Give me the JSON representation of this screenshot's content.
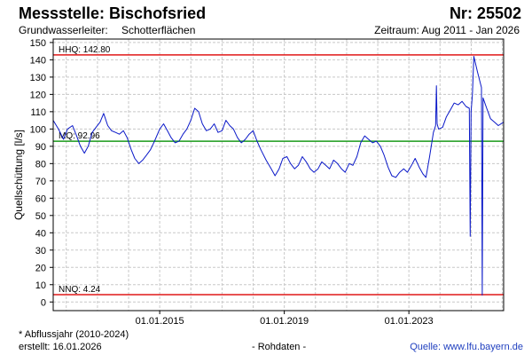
{
  "header": {
    "title": "Messstelle: Bischofsried",
    "number": "Nr: 25502",
    "aquifer_label": "Grundwasserleiter:",
    "aquifer_value": "Schotterflächen",
    "period": "Zeitraum: Aug 2011 - Jan 2026"
  },
  "footer": {
    "note": "* Abflussjahr (2010-2024)",
    "created": "erstellt:  16.01.2026",
    "rawdata": "- Rohdaten -",
    "source": "Quelle: www.lfu.bayern.de"
  },
  "colors": {
    "series": "#0a18c8",
    "hhq": "#e01818",
    "nnq": "#e01818",
    "mq": "#1a9a1a",
    "grid": "#c8c8c8"
  },
  "chart_data": {
    "type": "line",
    "ylabel": "Quellschüttung [l/s]",
    "ylim": [
      -5,
      152
    ],
    "yticks": [
      0,
      10,
      20,
      30,
      40,
      50,
      60,
      70,
      80,
      90,
      100,
      110,
      120,
      130,
      140,
      150
    ],
    "xlim": [
      "2011-08-01",
      "2026-01-16"
    ],
    "xticks": [
      {
        "date": "2015-01-01",
        "label": "01.01.2015"
      },
      {
        "date": "2019-01-01",
        "label": "01.01.2019"
      },
      {
        "date": "2023-01-01",
        "label": "01.01.2023"
      }
    ],
    "grid": true,
    "reference_lines": [
      {
        "name": "HHQ",
        "label": "HHQ: 142.80",
        "value": 142.8,
        "color": "#e01818"
      },
      {
        "name": "MQ",
        "label": "MQ: 92.96",
        "value": 92.96,
        "color": "#1a9a1a"
      },
      {
        "name": "NNQ",
        "label": "NNQ: 4.24",
        "value": 4.24,
        "color": "#e01818"
      }
    ],
    "series": [
      {
        "color": "#0a18c8",
        "points": [
          [
            "2011-08-01",
            105
          ],
          [
            "2011-10-01",
            100
          ],
          [
            "2011-12-01",
            94
          ],
          [
            "2012-01-15",
            100
          ],
          [
            "2012-03-15",
            102
          ],
          [
            "2012-05-01",
            96
          ],
          [
            "2012-06-15",
            90
          ],
          [
            "2012-08-01",
            86
          ],
          [
            "2012-09-15",
            90
          ],
          [
            "2012-11-01",
            98
          ],
          [
            "2012-12-15",
            101
          ],
          [
            "2013-02-01",
            104
          ],
          [
            "2013-03-15",
            109
          ],
          [
            "2013-05-01",
            102
          ],
          [
            "2013-06-15",
            99
          ],
          [
            "2013-08-01",
            98
          ],
          [
            "2013-09-15",
            97
          ],
          [
            "2013-11-01",
            99
          ],
          [
            "2013-12-15",
            95
          ],
          [
            "2014-02-01",
            88
          ],
          [
            "2014-03-15",
            83
          ],
          [
            "2014-05-01",
            80
          ],
          [
            "2014-06-15",
            82
          ],
          [
            "2014-08-01",
            85
          ],
          [
            "2014-09-15",
            88
          ],
          [
            "2014-11-01",
            93
          ],
          [
            "2015-01-01",
            100
          ],
          [
            "2015-02-15",
            103
          ],
          [
            "2015-04-01",
            99
          ],
          [
            "2015-05-15",
            95
          ],
          [
            "2015-07-01",
            92
          ],
          [
            "2015-08-15",
            93
          ],
          [
            "2015-10-01",
            97
          ],
          [
            "2015-11-15",
            100
          ],
          [
            "2016-01-01",
            105
          ],
          [
            "2016-02-15",
            112
          ],
          [
            "2016-04-01",
            110
          ],
          [
            "2016-05-15",
            103
          ],
          [
            "2016-07-01",
            99
          ],
          [
            "2016-08-15",
            100
          ],
          [
            "2016-10-01",
            103
          ],
          [
            "2016-11-15",
            98
          ],
          [
            "2017-01-01",
            99
          ],
          [
            "2017-02-15",
            105
          ],
          [
            "2017-04-01",
            102
          ],
          [
            "2017-05-15",
            100
          ],
          [
            "2017-07-01",
            95
          ],
          [
            "2017-08-15",
            92
          ],
          [
            "2017-10-01",
            94
          ],
          [
            "2017-11-15",
            97
          ],
          [
            "2018-01-01",
            99
          ],
          [
            "2018-02-15",
            93
          ],
          [
            "2018-04-01",
            88
          ],
          [
            "2018-06-01",
            82
          ],
          [
            "2018-08-01",
            77
          ],
          [
            "2018-09-15",
            73
          ],
          [
            "2018-11-01",
            77
          ],
          [
            "2018-12-15",
            83
          ],
          [
            "2019-02-01",
            84
          ],
          [
            "2019-03-15",
            80
          ],
          [
            "2019-05-01",
            77
          ],
          [
            "2019-06-15",
            79
          ],
          [
            "2019-08-01",
            84
          ],
          [
            "2019-09-15",
            81
          ],
          [
            "2019-11-01",
            77
          ],
          [
            "2019-12-15",
            75
          ],
          [
            "2020-02-01",
            77
          ],
          [
            "2020-03-15",
            81
          ],
          [
            "2020-05-01",
            79
          ],
          [
            "2020-06-15",
            77
          ],
          [
            "2020-08-01",
            82
          ],
          [
            "2020-09-15",
            80
          ],
          [
            "2020-11-01",
            77
          ],
          [
            "2020-12-15",
            75
          ],
          [
            "2021-02-01",
            80
          ],
          [
            "2021-03-15",
            79
          ],
          [
            "2021-05-01",
            84
          ],
          [
            "2021-06-15",
            92
          ],
          [
            "2021-08-01",
            96
          ],
          [
            "2021-09-15",
            94
          ],
          [
            "2021-11-01",
            92
          ],
          [
            "2021-12-15",
            93
          ],
          [
            "2022-02-01",
            90
          ],
          [
            "2022-03-15",
            85
          ],
          [
            "2022-05-01",
            78
          ],
          [
            "2022-06-15",
            73
          ],
          [
            "2022-08-01",
            72
          ],
          [
            "2022-09-15",
            75
          ],
          [
            "2022-11-01",
            77
          ],
          [
            "2022-12-15",
            75
          ],
          [
            "2023-02-01",
            79
          ],
          [
            "2023-03-15",
            83
          ],
          [
            "2023-05-01",
            78
          ],
          [
            "2023-06-15",
            74
          ],
          [
            "2023-07-20",
            72
          ],
          [
            "2023-09-01",
            84
          ],
          [
            "2023-10-15",
            98
          ],
          [
            "2023-11-10",
            102
          ],
          [
            "2023-11-20",
            125
          ],
          [
            "2023-11-28",
            103
          ],
          [
            "2023-12-15",
            100
          ],
          [
            "2024-02-01",
            101
          ],
          [
            "2024-03-15",
            107
          ],
          [
            "2024-05-01",
            111
          ],
          [
            "2024-06-15",
            115
          ],
          [
            "2024-08-01",
            114
          ],
          [
            "2024-09-15",
            116
          ],
          [
            "2024-11-01",
            113
          ],
          [
            "2024-12-10",
            112
          ],
          [
            "2024-12-20",
            38
          ],
          [
            "2024-12-30",
            110
          ],
          [
            "2025-01-15",
            120
          ],
          [
            "2025-02-01",
            142
          ],
          [
            "2025-03-15",
            133
          ],
          [
            "2025-05-01",
            124
          ],
          [
            "2025-05-10",
            4
          ],
          [
            "2025-05-20",
            118
          ],
          [
            "2025-07-01",
            112
          ],
          [
            "2025-08-15",
            106
          ],
          [
            "2025-10-01",
            104
          ],
          [
            "2025-11-15",
            102
          ],
          [
            "2026-01-16",
            104
          ]
        ]
      }
    ]
  }
}
